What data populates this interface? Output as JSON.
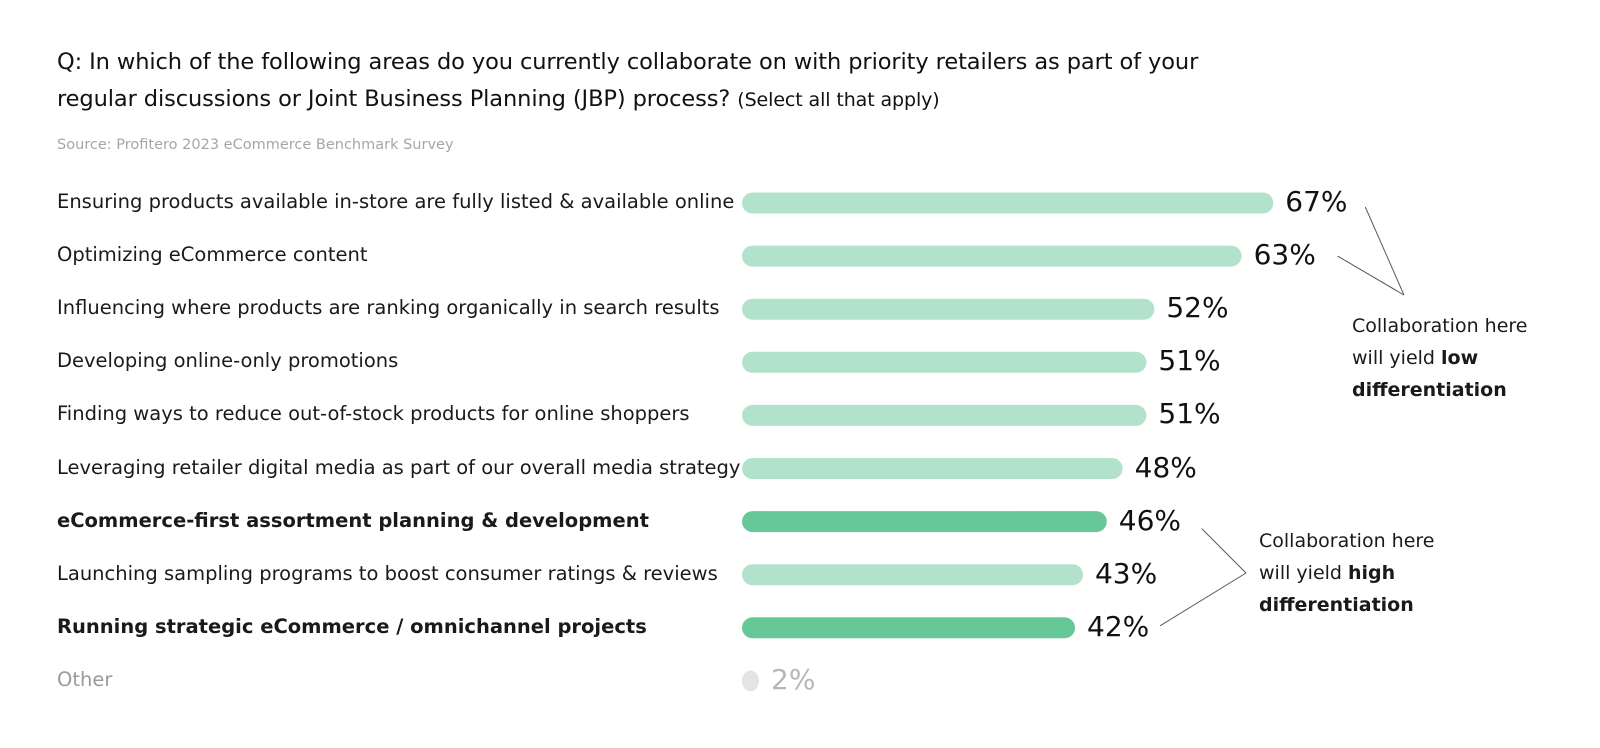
{
  "question": {
    "main": "Q: In which of the following areas do you currently collaborate on with priority retailers as part of your regular discussions or Joint Business Planning (JBP) process?",
    "note": "(Select all that apply)"
  },
  "source": "Source: Profitero 2023 eCommerce Benchmark Survey",
  "colors": {
    "low": "#b2e2cb",
    "high": "#66c899",
    "other": "#e4e4e4"
  },
  "chart_data": {
    "type": "bar",
    "orientation": "horizontal",
    "unit": "%",
    "xlim": [
      0,
      100
    ],
    "categories": [
      "Ensuring products available in-store are fully listed & available online",
      "Optimizing eCommerce content",
      "Influencing where products are ranking organically in search results",
      "Developing online-only promotions",
      "Finding ways to reduce out-of-stock products for online shoppers",
      "Leveraging retailer digital media as part of our overall media strategy",
      "eCommerce-first assortment planning & development",
      "Launching sampling programs to boost consumer ratings & reviews",
      "Running strategic eCommerce / omnichannel projects",
      "Other"
    ],
    "values": [
      67,
      63,
      52,
      51,
      51,
      48,
      46,
      43,
      42,
      2
    ],
    "value_labels": [
      "67%",
      "63%",
      "52%",
      "51%",
      "51%",
      "48%",
      "46%",
      "43%",
      "42%",
      "2%"
    ],
    "highlight": [
      "low",
      "low",
      "low",
      "low",
      "low",
      "low",
      "high",
      "low",
      "high",
      "other"
    ],
    "annotations": [
      {
        "text_before": "Collaboration here will yield",
        "text_bold": "low differentiation",
        "points_to": [
          0,
          1
        ]
      },
      {
        "text_before": "Collaboration here will yield",
        "text_bold": "high differentiation",
        "points_to": [
          6,
          8
        ]
      }
    ]
  }
}
